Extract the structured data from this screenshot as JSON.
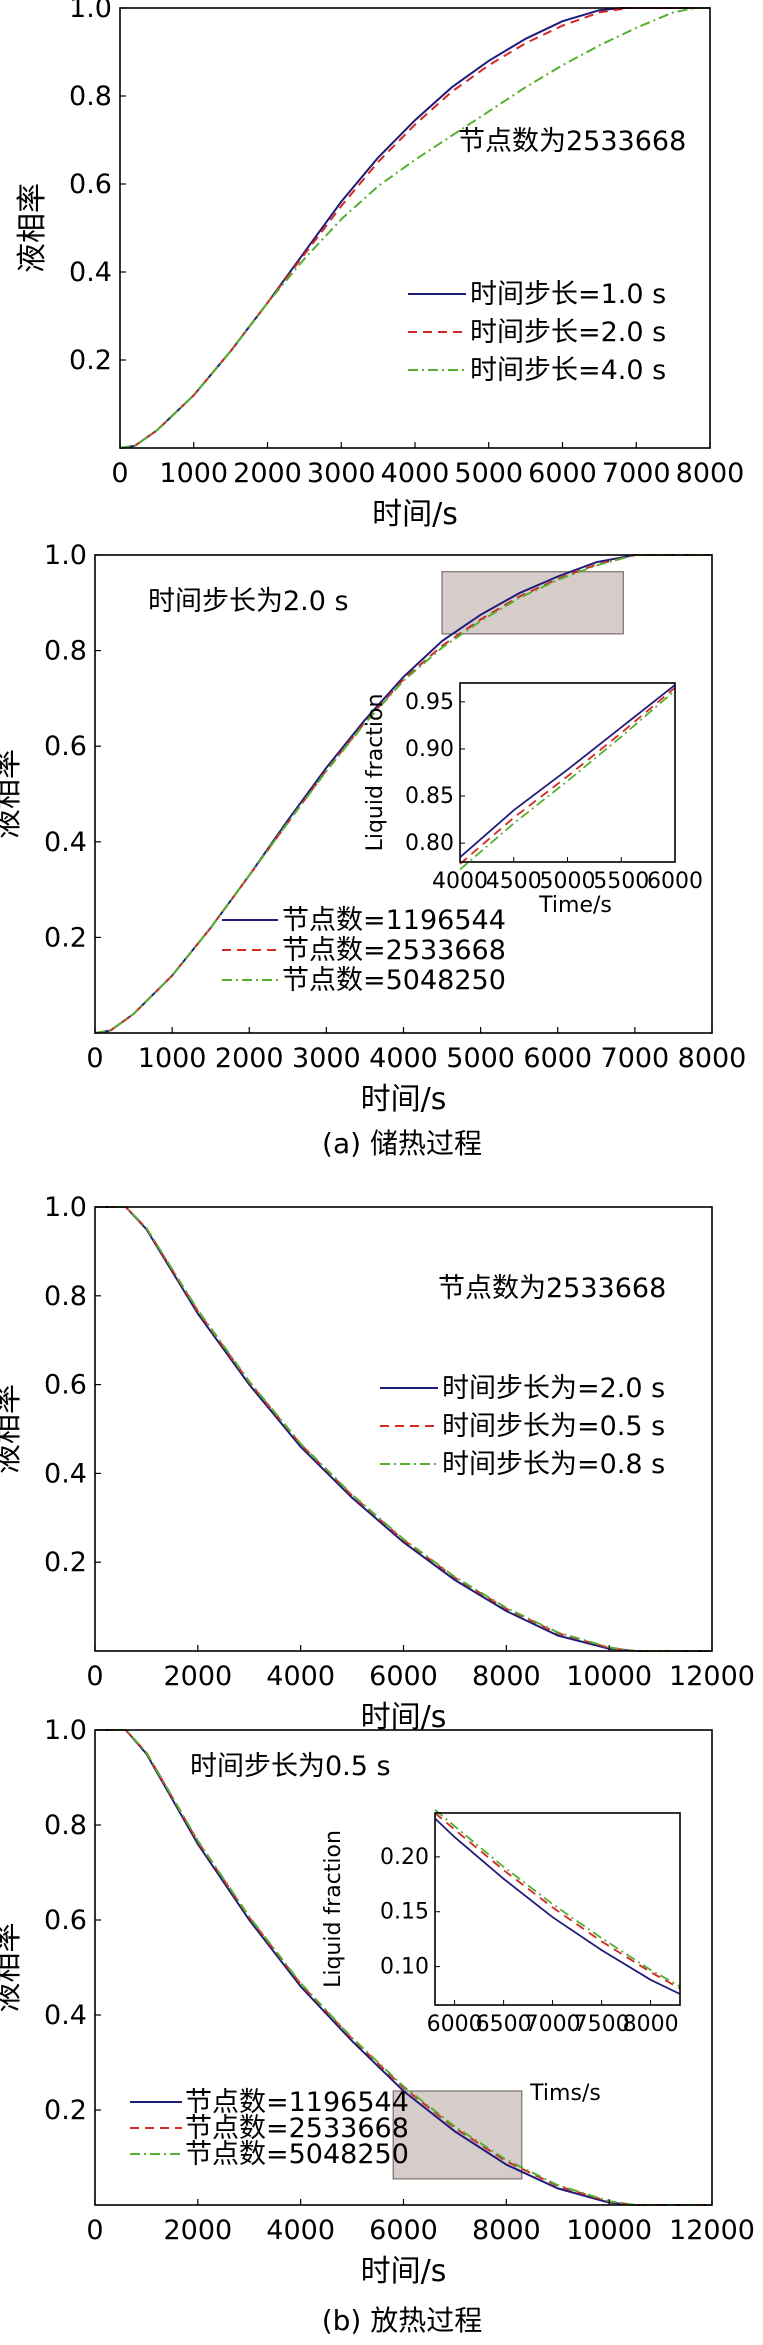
{
  "captions": [
    "(a) 储热过程",
    "(b) 放热过程"
  ],
  "styles": [
    {
      "color": "#1f1d7a",
      "dash": ""
    },
    {
      "color": "#d62728",
      "dash": "9,6"
    },
    {
      "color": "#55b030",
      "dash": "10,4,2,4"
    }
  ],
  "chart_data": [
    {
      "type": "line",
      "xlabel": "时间/s",
      "ylabel": "液相率",
      "xlim": [
        0,
        8000
      ],
      "ylim": [
        0,
        1.0
      ],
      "xticks": [
        0,
        1000,
        2000,
        3000,
        4000,
        5000,
        6000,
        7000,
        8000
      ],
      "yticks": [
        0.2,
        0.4,
        0.6,
        0.8,
        1.0
      ],
      "annotation": "节点数为2533668",
      "legend_position": "lower-right",
      "series": [
        {
          "name": "时间步长=1.0 s",
          "x": [
            0,
            200,
            500,
            1000,
            1500,
            2000,
            2500,
            3000,
            3500,
            4000,
            4500,
            5000,
            5500,
            6000,
            6500,
            6800,
            8000
          ],
          "y": [
            0,
            0.005,
            0.04,
            0.12,
            0.22,
            0.33,
            0.445,
            0.56,
            0.66,
            0.745,
            0.82,
            0.88,
            0.93,
            0.97,
            0.995,
            1.0,
            1.0
          ]
        },
        {
          "name": "时间步长=2.0 s",
          "x": [
            0,
            200,
            500,
            1000,
            1500,
            2000,
            2500,
            3000,
            3500,
            4000,
            4500,
            5000,
            5500,
            6000,
            6500,
            6900,
            8000
          ],
          "y": [
            0,
            0.005,
            0.04,
            0.12,
            0.22,
            0.33,
            0.44,
            0.55,
            0.65,
            0.735,
            0.81,
            0.87,
            0.92,
            0.96,
            0.99,
            1.0,
            1.0
          ]
        },
        {
          "name": "时间步长=4.0 s",
          "x": [
            0,
            200,
            500,
            1000,
            1500,
            2000,
            2500,
            3000,
            3500,
            4000,
            4500,
            5000,
            5500,
            6000,
            6500,
            7000,
            7500,
            7800,
            8000
          ],
          "y": [
            0,
            0.005,
            0.04,
            0.12,
            0.22,
            0.33,
            0.43,
            0.52,
            0.595,
            0.655,
            0.71,
            0.765,
            0.82,
            0.87,
            0.915,
            0.955,
            0.99,
            1.0,
            1.0
          ]
        }
      ]
    },
    {
      "type": "line",
      "xlabel": "时间/s",
      "ylabel": "液相率",
      "xlim": [
        0,
        8000
      ],
      "ylim": [
        0,
        1.0
      ],
      "xticks": [
        0,
        1000,
        2000,
        3000,
        4000,
        5000,
        6000,
        7000,
        8000
      ],
      "yticks": [
        0.2,
        0.4,
        0.6,
        0.8,
        1.0
      ],
      "annotation": "时间步长为2.0 s",
      "legend_position": "lower-left",
      "highlight_box": {
        "x": [
          4500,
          6850
        ],
        "y": [
          0.835,
          0.965
        ]
      },
      "series": [
        {
          "name": "节点数=1196544",
          "x": [
            0,
            200,
            500,
            1000,
            1500,
            2000,
            2500,
            3000,
            3500,
            4000,
            4500,
            5000,
            5500,
            6000,
            6500,
            7000,
            8000
          ],
          "y": [
            0,
            0.005,
            0.04,
            0.12,
            0.22,
            0.33,
            0.445,
            0.555,
            0.655,
            0.745,
            0.82,
            0.875,
            0.92,
            0.955,
            0.985,
            1.0,
            1.0
          ]
        },
        {
          "name": "节点数=2533668",
          "x": [
            0,
            200,
            500,
            1000,
            1500,
            2000,
            2500,
            3000,
            3500,
            4000,
            4500,
            5000,
            5500,
            6000,
            6500,
            7000,
            8000
          ],
          "y": [
            0,
            0.005,
            0.04,
            0.12,
            0.22,
            0.33,
            0.44,
            0.55,
            0.65,
            0.74,
            0.81,
            0.865,
            0.913,
            0.95,
            0.98,
            1.0,
            1.0
          ]
        },
        {
          "name": "节点数=5048250",
          "x": [
            0,
            200,
            500,
            1000,
            1500,
            2000,
            2500,
            3000,
            3500,
            4000,
            4500,
            5000,
            5500,
            6000,
            6500,
            7000,
            8000
          ],
          "y": [
            0,
            0.005,
            0.04,
            0.12,
            0.22,
            0.33,
            0.44,
            0.548,
            0.648,
            0.737,
            0.806,
            0.862,
            0.91,
            0.948,
            0.978,
            1.0,
            1.0
          ]
        }
      ],
      "inset": {
        "xlabel": "Time/s",
        "ylabel": "Liquid fraction",
        "xlim": [
          4000,
          6000
        ],
        "ylim": [
          0.78,
          0.97
        ],
        "xticks": [
          4000,
          4500,
          5000,
          5500,
          6000
        ],
        "yticks": [
          0.8,
          0.85,
          0.9,
          0.95
        ],
        "tick_labels_x": [
          "4000",
          "4500",
          "5000",
          "5500",
          "6000"
        ],
        "tick_labels_y": [
          "0.80",
          "0.85",
          "0.90",
          "0.95"
        ],
        "series": [
          {
            "name": "节点数=1196544",
            "x": [
              4000,
              4500,
              5000,
              5500,
              6000
            ],
            "y": [
              0.785,
              0.835,
              0.878,
              0.923,
              0.968
            ]
          },
          {
            "name": "节点数=2533668",
            "x": [
              4000,
              4500,
              5000,
              5500,
              6000
            ],
            "y": [
              0.778,
              0.827,
              0.871,
              0.917,
              0.965
            ]
          },
          {
            "name": "节点数=5048250",
            "x": [
              4000,
              4500,
              5000,
              5500,
              6000
            ],
            "y": [
              0.772,
              0.821,
              0.866,
              0.913,
              0.962
            ]
          }
        ]
      }
    },
    {
      "type": "line",
      "xlabel": "时间/s",
      "ylabel": "液相率",
      "xlim": [
        0,
        12000
      ],
      "ylim": [
        0,
        1.0
      ],
      "xticks": [
        0,
        2000,
        4000,
        6000,
        8000,
        10000,
        12000
      ],
      "yticks": [
        0.2,
        0.4,
        0.6,
        0.8,
        1.0
      ],
      "annotation": "节点数为2533668",
      "legend_position": "right",
      "series": [
        {
          "name": "时间步长为=2.0 s",
          "x": [
            0,
            600,
            1000,
            2000,
            3000,
            4000,
            5000,
            6000,
            7000,
            8000,
            9000,
            10000,
            10500,
            12000
          ],
          "y": [
            1.0,
            1.0,
            0.95,
            0.76,
            0.6,
            0.46,
            0.345,
            0.245,
            0.16,
            0.09,
            0.035,
            0.005,
            0,
            0
          ]
        },
        {
          "name": "时间步长为=0.5 s",
          "x": [
            0,
            600,
            1000,
            2000,
            3000,
            4000,
            5000,
            6000,
            7000,
            8000,
            9000,
            10000,
            10500,
            12000
          ],
          "y": [
            1.0,
            1.0,
            0.952,
            0.765,
            0.605,
            0.465,
            0.35,
            0.25,
            0.165,
            0.095,
            0.04,
            0.007,
            0,
            0
          ]
        },
        {
          "name": "时间步长为=0.8 s",
          "x": [
            0,
            600,
            1000,
            2000,
            3000,
            4000,
            5000,
            6000,
            7000,
            8000,
            9000,
            10000,
            10500,
            12000
          ],
          "y": [
            1.0,
            1.0,
            0.953,
            0.768,
            0.607,
            0.467,
            0.352,
            0.252,
            0.167,
            0.097,
            0.042,
            0.008,
            0,
            0
          ]
        }
      ]
    },
    {
      "type": "line",
      "xlabel": "时间/s",
      "ylabel": "液相率",
      "xlim": [
        0,
        12000
      ],
      "ylim": [
        0,
        1.0
      ],
      "xticks": [
        0,
        2000,
        4000,
        6000,
        8000,
        10000,
        12000
      ],
      "yticks": [
        0.2,
        0.4,
        0.6,
        0.8,
        1.0
      ],
      "annotation": "时间步长为0.5 s",
      "legend_position": "lower-left",
      "highlight_box": {
        "x": [
          5800,
          8300
        ],
        "y": [
          0.055,
          0.24
        ]
      },
      "series": [
        {
          "name": "节点数=1196544",
          "x": [
            0,
            600,
            1000,
            2000,
            3000,
            4000,
            5000,
            6000,
            7000,
            8000,
            9000,
            10000,
            10500,
            12000
          ],
          "y": [
            1.0,
            1.0,
            0.95,
            0.76,
            0.6,
            0.46,
            0.345,
            0.24,
            0.155,
            0.085,
            0.035,
            0.005,
            0,
            0
          ]
        },
        {
          "name": "节点数=2533668",
          "x": [
            0,
            600,
            1000,
            2000,
            3000,
            4000,
            5000,
            6000,
            7000,
            8000,
            9000,
            10000,
            10500,
            12000
          ],
          "y": [
            1.0,
            1.0,
            0.952,
            0.765,
            0.605,
            0.465,
            0.35,
            0.247,
            0.162,
            0.092,
            0.04,
            0.007,
            0,
            0
          ]
        },
        {
          "name": "节点数=5048250",
          "x": [
            0,
            600,
            1000,
            2000,
            3000,
            4000,
            5000,
            6000,
            7000,
            8000,
            9000,
            10000,
            10500,
            12000
          ],
          "y": [
            1.0,
            1.0,
            0.953,
            0.767,
            0.607,
            0.467,
            0.352,
            0.25,
            0.165,
            0.095,
            0.042,
            0.008,
            0,
            0
          ]
        }
      ],
      "inset": {
        "xlabel": "Tims/s",
        "ylabel": "Liquid fraction",
        "xlim": [
          5800,
          8300
        ],
        "ylim": [
          0.065,
          0.24
        ],
        "xticks": [
          6000,
          6500,
          7000,
          7500,
          8000
        ],
        "yticks": [
          0.1,
          0.15,
          0.2
        ],
        "tick_labels_x": [
          "6000",
          "6500",
          "7000",
          "7500",
          "8000"
        ],
        "tick_labels_y": [
          "0.10",
          "0.15",
          "0.20"
        ],
        "series": [
          {
            "name": "节点数=1196544",
            "x": [
              5800,
              6000,
              6500,
              7000,
              7500,
              8000,
              8300
            ],
            "y": [
              0.235,
              0.218,
              0.18,
              0.145,
              0.115,
              0.088,
              0.075
            ]
          },
          {
            "name": "节点数=2533668",
            "x": [
              5800,
              6000,
              6500,
              7000,
              7500,
              8000,
              8300
            ],
            "y": [
              0.24,
              0.225,
              0.188,
              0.154,
              0.123,
              0.095,
              0.08
            ]
          },
          {
            "name": "节点数=5048250",
            "x": [
              5800,
              6000,
              6500,
              7000,
              7500,
              8000,
              8300
            ],
            "y": [
              0.243,
              0.228,
              0.191,
              0.157,
              0.126,
              0.097,
              0.082
            ]
          }
        ]
      }
    }
  ]
}
